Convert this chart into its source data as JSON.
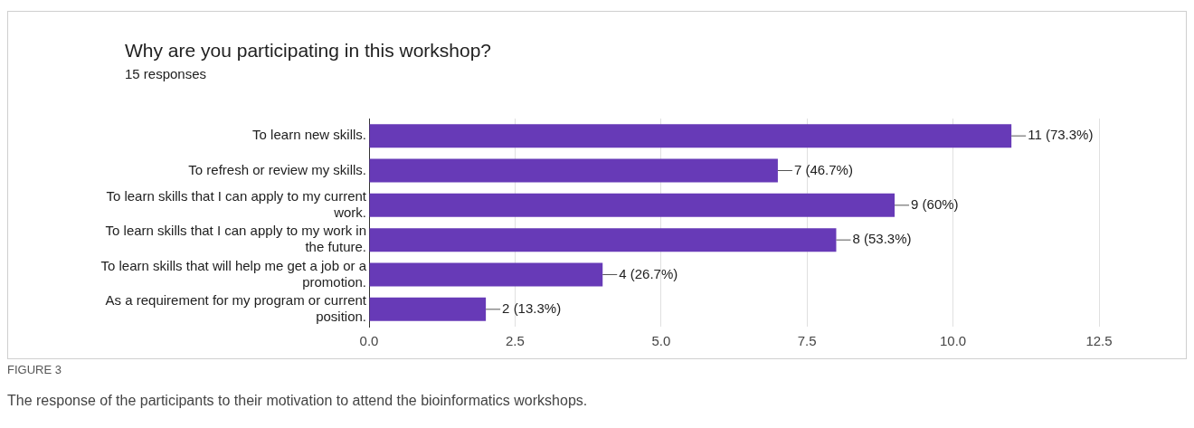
{
  "chart_data": {
    "type": "bar",
    "orientation": "horizontal",
    "title": "Why are you participating in this workshop?",
    "subtitle": "15 responses",
    "categories": [
      "To learn new skills.",
      "To refresh or review my skills.",
      "To learn skills that I can apply to my current work.",
      "To learn skills that I can apply to my work in the future.",
      "To learn skills that will help me get a job or a promotion.",
      "As a requirement for my program or current position."
    ],
    "values": [
      11,
      7,
      9,
      8,
      4,
      2
    ],
    "color": "#673ab7",
    "value_labels": [
      "11 (73.3%)",
      "7 (46.7%)",
      "9 (60%)",
      "8 (53.3%)",
      "4 (26.7%)",
      "2 (13.3%)"
    ],
    "xlim": [
      0,
      12.5
    ],
    "xticks": [
      {
        "value": 0,
        "label": "0.0"
      },
      2.5,
      {
        "value": 5,
        "label": "5.0"
      },
      7.5,
      {
        "value": 10,
        "label": "10.0"
      },
      12.5
    ],
    "grid": "x",
    "legend": false,
    "annotations": [
      "FIGURE 3",
      "The response of the participants to their motivation to attend the bioinformatics workshops."
    ]
  }
}
